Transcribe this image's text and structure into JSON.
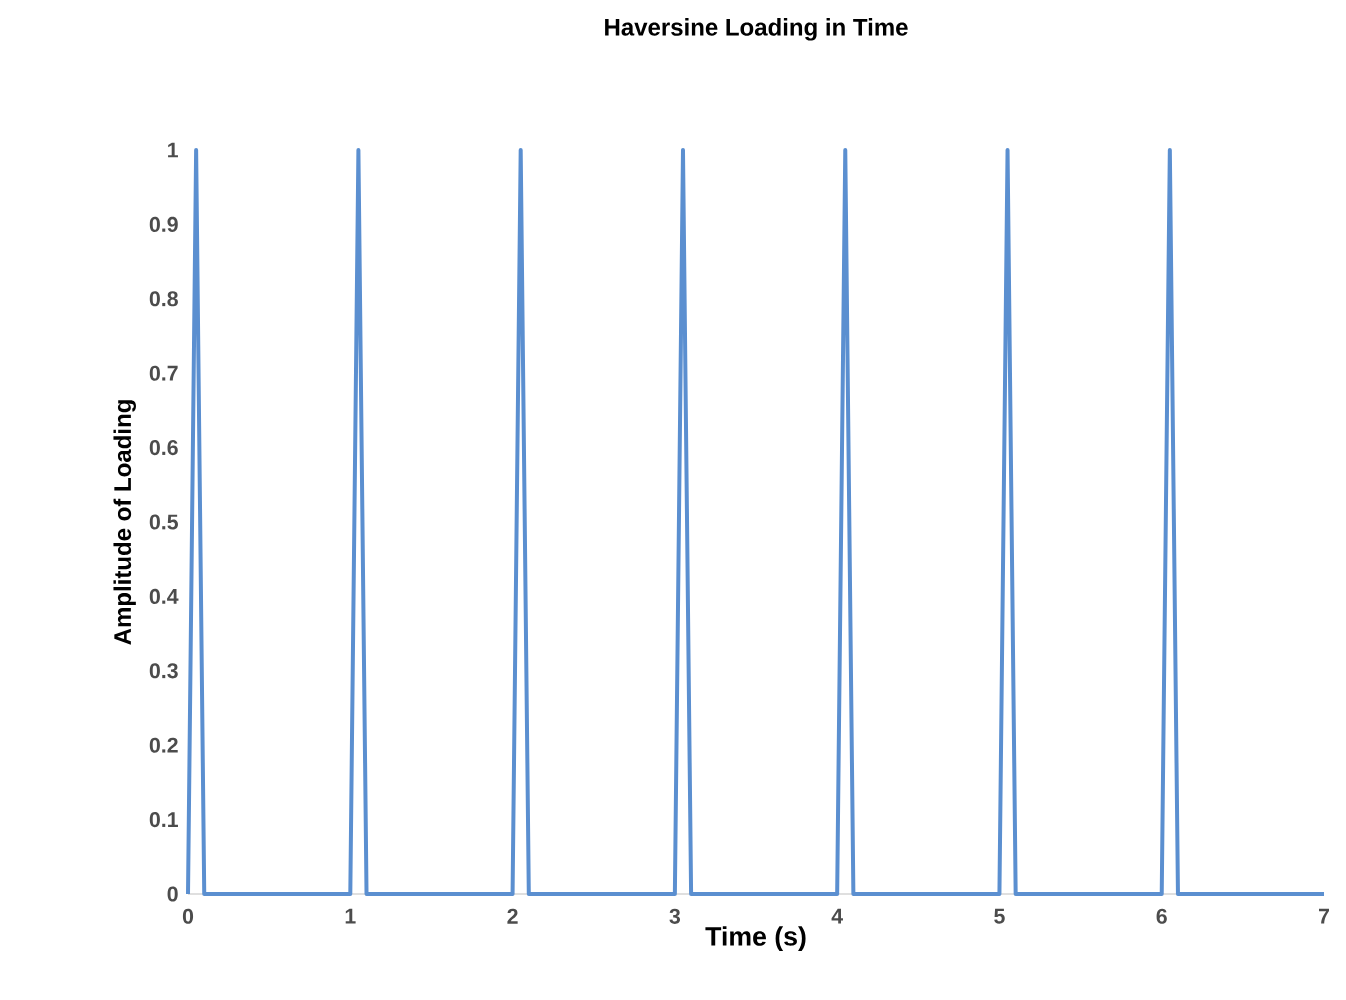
{
  "chart_data": {
    "type": "line",
    "title": "Haversine Loading in Time",
    "xlabel": "Time (s)",
    "ylabel": "Amplitude of Loading",
    "x": [
      0,
      0.05,
      0.1,
      1,
      1.05,
      1.1,
      2,
      2.05,
      2.1,
      3,
      3.05,
      3.1,
      4,
      4.05,
      4.1,
      5,
      5.05,
      5.1,
      6,
      6.05,
      6.1,
      7
    ],
    "series": [
      {
        "color": "#5b8fd0",
        "values": [
          0,
          1,
          0,
          0,
          1,
          0,
          0,
          1,
          0,
          0,
          1,
          0,
          0,
          1,
          0,
          0,
          1,
          0,
          0,
          1,
          0,
          0
        ]
      }
    ],
    "xlim": [
      0,
      7
    ],
    "xticks": [
      0,
      1,
      2,
      3,
      4,
      5,
      6,
      7
    ],
    "ylim": [
      0,
      1
    ],
    "yticks": [
      0,
      0.1,
      0.2,
      0.3,
      0.4,
      0.5,
      0.6,
      0.7,
      0.8,
      0.9,
      1
    ],
    "marker": "none",
    "line_style": "solid"
  }
}
